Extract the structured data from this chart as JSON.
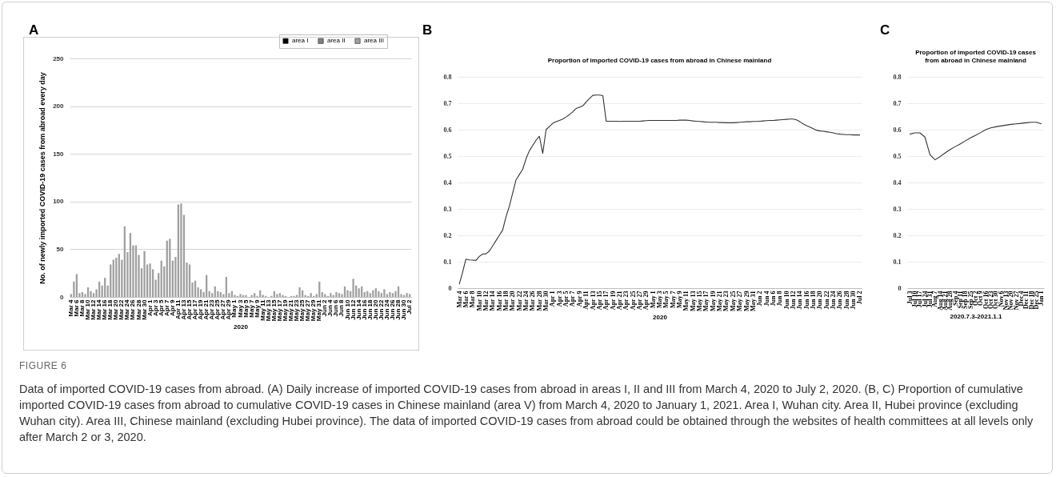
{
  "chart_data": [
    {
      "type": "bar",
      "annotations": [
        "A",
        "FIGURE 6",
        "Data of imported COVID-19 cases from abroad. (A) Daily increase of imported COVID-19 cases from abroad in areas I, II and III from March 4, 2020 to July 2, 2020. (B, C) Proportion of cumulative imported COVID-19 cases from abroad to cumulative COVID-19 cases in Chinese mainland (area V) from March 4, 2020 to January 1, 2021. Area I, Wuhan city. Area II, Hubei province (excluding Wuhan city). Area III, Chinese mainland (excluding Hubei province). The data of imported COVID-19 cases from abroad could be obtained through the websites of health committees at all levels only after March 2 or 3, 2020."
      ],
      "xlabel": "2020",
      "ylabel": "No. of newly imported COVID-19 cases from abroad every day",
      "categories": [
        "Mar 4",
        null,
        "Mar 6",
        null,
        "Mar 8",
        null,
        "Mar 10",
        null,
        "Mar 12",
        null,
        "Mar 14",
        null,
        "Mar 16",
        null,
        "Mar 18",
        null,
        "Mar 20",
        null,
        "Mar 22",
        null,
        "Mar 24",
        null,
        "Mar 26",
        null,
        "Mar 28",
        null,
        "Mar 30",
        null,
        "Apr 1",
        null,
        "Apr 3",
        null,
        "Apr 5",
        null,
        "Apr 7",
        null,
        "Apr 9",
        null,
        "Apr 11",
        null,
        "Apr 13",
        null,
        "Apr 15",
        null,
        "Apr 17",
        null,
        "Apr 19",
        null,
        "Apr 21",
        null,
        "Apr 23",
        null,
        "Apr 25",
        null,
        "Apr 27",
        null,
        "Apr 29",
        null,
        "May 1",
        null,
        "May 3",
        null,
        "May 5",
        null,
        "May 7",
        null,
        "May 9",
        null,
        "May 11",
        null,
        "May 13",
        null,
        "May 15",
        null,
        "May 17",
        null,
        "May 19",
        null,
        "May 21",
        null,
        "May 23",
        null,
        "May 25",
        null,
        "May 27",
        null,
        "May 29",
        null,
        "May 31",
        null,
        "Jun 2",
        null,
        "Jun 4",
        null,
        "Jun 6",
        null,
        "Jun 8",
        null,
        "Jun 10",
        null,
        "Jun 12",
        null,
        "Jun 14",
        null,
        "Jun 16",
        null,
        "Jun 18",
        null,
        "Jun 20",
        null,
        "Jun 22",
        null,
        "Jun 24",
        null,
        "Jun 26",
        null,
        "Jun 28",
        null,
        "Jun 30",
        null,
        "Jul 2"
      ],
      "series": [
        {
          "name": "area I",
          "color": "#000000",
          "values": [
            null,
            null,
            null,
            null,
            null,
            null,
            null,
            null,
            null,
            null,
            null,
            null,
            null,
            null,
            null,
            null,
            null,
            null,
            null,
            null,
            null,
            null,
            null,
            null,
            null,
            null,
            null,
            null,
            null,
            null,
            null,
            null,
            null,
            null,
            null,
            null,
            null,
            null,
            null,
            null,
            null,
            null,
            null,
            null,
            null,
            null,
            null,
            null,
            null,
            null,
            null,
            null,
            null,
            null,
            null,
            null,
            null,
            null,
            null,
            null,
            null,
            null,
            null,
            null,
            null,
            null,
            null,
            null,
            null,
            null,
            null,
            null,
            null,
            null,
            null,
            null,
            null,
            null,
            null,
            null,
            null,
            null,
            null,
            null,
            null,
            null,
            null,
            null,
            null,
            null,
            null,
            null,
            null,
            null,
            null,
            null,
            null,
            null,
            null,
            null,
            null,
            null,
            null,
            null,
            null,
            null,
            null,
            null,
            null,
            null,
            null,
            null,
            null,
            null,
            null,
            null,
            null,
            null,
            null,
            null,
            null
          ]
        },
        {
          "name": "area II",
          "color": "#808080",
          "values": [
            null,
            null,
            null,
            null,
            null,
            null,
            null,
            null,
            null,
            null,
            null,
            null,
            null,
            null,
            null,
            null,
            null,
            null,
            null,
            null,
            null,
            null,
            null,
            null,
            null,
            null,
            null,
            null,
            null,
            null,
            null,
            null,
            null,
            null,
            null,
            null,
            null,
            null,
            null,
            null,
            null,
            null,
            null,
            null,
            null,
            null,
            null,
            null,
            null,
            null,
            null,
            null,
            null,
            null,
            null,
            null,
            null,
            null,
            null,
            null,
            null,
            null,
            null,
            null,
            null,
            null,
            null,
            null,
            null,
            null,
            null,
            null,
            null,
            null,
            null,
            null,
            null,
            null,
            null,
            null,
            null,
            null,
            null,
            null,
            null,
            null,
            null,
            null,
            null,
            null,
            null,
            null,
            null,
            null,
            null,
            null,
            null,
            null,
            null,
            null,
            null,
            null,
            null,
            null,
            null,
            null,
            null,
            null,
            null,
            null,
            null,
            null,
            null,
            null,
            null,
            null,
            null,
            null,
            null,
            null,
            null
          ]
        },
        {
          "name": "area III",
          "color": "#a0a0a0",
          "values": [
            3,
            16,
            24,
            4,
            5,
            3,
            10,
            6,
            4,
            8,
            16,
            12,
            20,
            12,
            34,
            39,
            41,
            45,
            39,
            74,
            47,
            67,
            54,
            54,
            44,
            30,
            48,
            34,
            35,
            29,
            18,
            25,
            38,
            32,
            59,
            61,
            38,
            42,
            97,
            98,
            86,
            36,
            34,
            15,
            17,
            10,
            8,
            5,
            23,
            6,
            4,
            11,
            6,
            5,
            3,
            21,
            4,
            6,
            2,
            1,
            3,
            2,
            2,
            0,
            2,
            4,
            1,
            7,
            2,
            1,
            0,
            1,
            6,
            3,
            4,
            2,
            1,
            0,
            1,
            1,
            2,
            10,
            7,
            2,
            1,
            4,
            1,
            3,
            16,
            5,
            3,
            1,
            4,
            2,
            5,
            4,
            3,
            11,
            7,
            6,
            19,
            12,
            9,
            11,
            5,
            6,
            4,
            7,
            9,
            6,
            4,
            8,
            3,
            5,
            4,
            6,
            11,
            3,
            2,
            4,
            3
          ]
        }
      ],
      "ylim": [
        0,
        250
      ],
      "yticks": [
        0,
        50,
        100,
        150,
        200,
        250
      ],
      "grid": "y",
      "legend": "top right"
    },
    {
      "type": "line",
      "annotations": [
        "B"
      ],
      "title": "Proportion of imported COVID-19 cases from abroad in Chinese mainland",
      "xlabel": "2020",
      "categories": [
        "Mar 4",
        null,
        "Mar 6",
        null,
        "Mar 8",
        null,
        "Mar 10",
        null,
        "Mar 12",
        null,
        "Mar 14",
        null,
        "Mar 16",
        null,
        "Mar 18",
        null,
        "Mar 20",
        null,
        "Mar 22",
        null,
        "Mar 24",
        null,
        "Mar 26",
        null,
        "Mar 28",
        null,
        "Mar 30",
        null,
        "Apr 1",
        null,
        "Apr 3",
        null,
        "Apr 5",
        null,
        "Apr 7",
        null,
        "Apr 9",
        null,
        "Apr 11",
        null,
        "Apr 13",
        null,
        "Apr 15",
        null,
        "Apr 17",
        null,
        "Apr 19",
        null,
        "Apr 21",
        null,
        "Apr 23",
        null,
        "Apr 25",
        null,
        "Apr 27",
        null,
        "Apr 29",
        null,
        "May 1",
        null,
        "May 3",
        null,
        "May 5",
        null,
        "May 7",
        null,
        "May 9",
        null,
        "May 11",
        null,
        "May 13",
        null,
        "May 15",
        null,
        "May 17",
        null,
        "May 19",
        null,
        "May 21",
        null,
        "May 23",
        null,
        "May 25",
        null,
        "May 27",
        null,
        "May 29",
        null,
        "May 31",
        null,
        "Jun 2",
        null,
        "Jun 4",
        null,
        "Jun 6",
        null,
        "Jun 8",
        null,
        "Jun 10",
        null,
        "Jun 12",
        null,
        "Jun 14",
        null,
        "Jun 16",
        null,
        "Jun 18",
        null,
        "Jun 20",
        null,
        "Jun 22",
        null,
        "Jun 24",
        null,
        "Jun 26",
        null,
        "Jun 28",
        null,
        "Jun 30",
        null,
        "Jul 2"
      ],
      "series": [
        {
          "color": "#333333",
          "values": [
            0.015,
            0.06,
            0.11,
            0.107,
            0.106,
            0.105,
            0.12,
            0.129,
            0.13,
            0.14,
            0.16,
            0.18,
            0.2,
            0.22,
            0.27,
            0.31,
            0.36,
            0.41,
            0.43,
            0.45,
            0.49,
            0.52,
            0.54,
            0.56,
            0.575,
            0.51,
            0.6,
            0.612,
            0.624,
            0.63,
            0.635,
            0.64,
            0.648,
            0.657,
            0.668,
            0.68,
            0.685,
            0.69,
            0.705,
            0.718,
            0.73,
            0.731,
            0.731,
            0.729,
            0.632,
            0.632,
            0.632,
            0.632,
            0.631,
            0.632,
            0.632,
            0.632,
            0.632,
            0.632,
            0.632,
            0.633,
            0.634,
            0.635,
            0.635,
            0.635,
            0.635,
            0.635,
            0.635,
            0.635,
            0.635,
            0.635,
            0.636,
            0.636,
            0.636,
            0.635,
            0.633,
            0.632,
            0.631,
            0.63,
            0.629,
            0.628,
            0.628,
            0.628,
            0.627,
            0.627,
            0.626,
            0.626,
            0.626,
            0.627,
            0.628,
            0.629,
            0.63,
            0.63,
            0.631,
            0.631,
            0.632,
            0.633,
            0.634,
            0.635,
            0.635,
            0.636,
            0.637,
            0.638,
            0.639,
            0.64,
            0.64,
            0.637,
            0.63,
            0.622,
            0.615,
            0.61,
            0.604,
            0.598,
            0.595,
            0.594,
            0.592,
            0.59,
            0.588,
            0.585,
            0.583,
            0.582,
            0.581,
            0.581,
            0.58,
            0.58,
            0.58
          ]
        }
      ],
      "ylim": [
        0,
        0.8
      ],
      "yticks": [
        0,
        0.1,
        0.2,
        0.3,
        0.4,
        0.5,
        0.6,
        0.7,
        0.8
      ],
      "grid": "y"
    },
    {
      "type": "line",
      "annotations": [
        "C"
      ],
      "title": "Proportion of imported COVID-19 cases from abroad in Chinese mainland",
      "xlabel": "2020.7.3-2021.1.1",
      "categories": [
        "Jul 3",
        "Jul 10",
        "Jul 17",
        "Jul 24",
        "Jul 31",
        "Aug 7",
        "Aug 14",
        "Aug 21",
        "Aug 28",
        "Sep 4",
        "Sep 11",
        "Sep 18",
        "Sep 25",
        "Oct 2",
        "Oct 9",
        "Oct 16",
        "Oct 23",
        "Oct 30",
        "Nov 6",
        "Nov 13",
        "Nov 20",
        "Nov 27",
        "Dec 4",
        "Dec 11",
        "Dec 18",
        "Dec 25",
        "Jan 1"
      ],
      "series": [
        {
          "color": "#333333",
          "values": [
            0.583,
            0.588,
            0.588,
            0.572,
            0.505,
            0.486,
            0.498,
            0.512,
            0.525,
            0.536,
            0.546,
            0.558,
            0.569,
            0.579,
            0.589,
            0.6,
            0.607,
            0.611,
            0.614,
            0.617,
            0.62,
            0.622,
            0.624,
            0.626,
            0.628,
            0.628,
            0.622
          ]
        }
      ],
      "ylim": [
        0,
        0.8
      ],
      "yticks": [
        0,
        0.1,
        0.2,
        0.3,
        0.4,
        0.5,
        0.6,
        0.7,
        0.8
      ],
      "grid": "y"
    }
  ]
}
